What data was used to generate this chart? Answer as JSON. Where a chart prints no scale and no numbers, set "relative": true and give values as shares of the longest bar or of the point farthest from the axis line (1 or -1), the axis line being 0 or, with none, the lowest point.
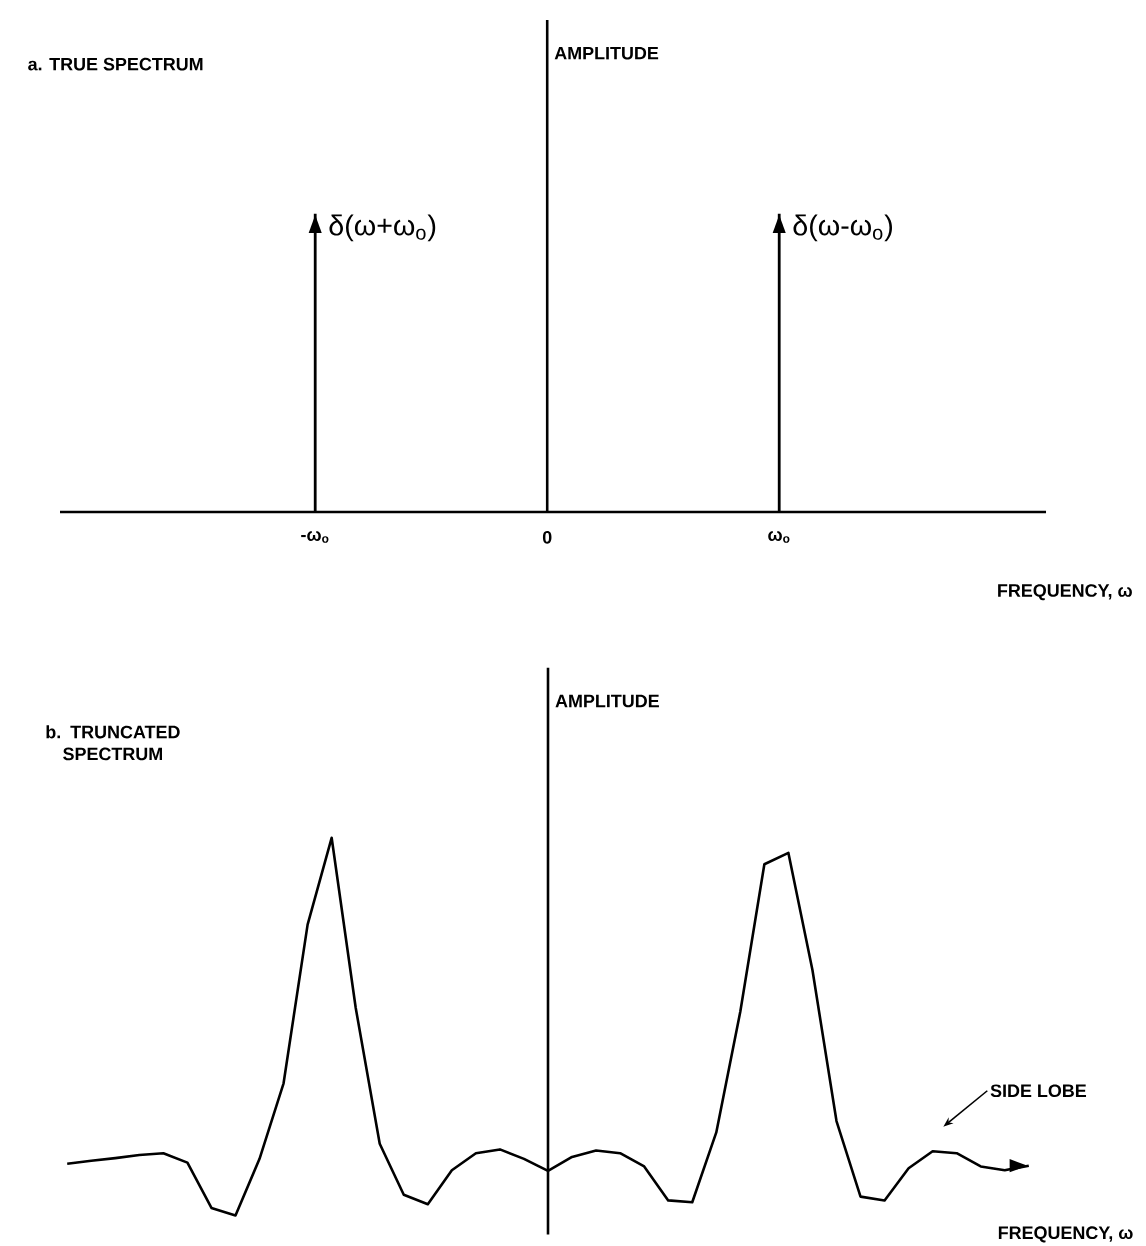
{
  "chart_data": [
    {
      "type": "bar",
      "title": "a. TRUE SPECTRUM",
      "xlabel": "FREQUENCY, ω",
      "ylabel": "AMPLITUDE",
      "relative": true,
      "categories": [
        "-ω$_{o}$",
        "0",
        "ω$_{o}$"
      ],
      "values": [
        1,
        null,
        1
      ],
      "color": "#000000",
      "annotations": [
        {
          "text": "δ(ω+ω$_{o}$)",
          "x": "-ω$_{o}$",
          "y": 1
        },
        {
          "text": "δ(ω-ω$_{o}$)",
          "x": "ω$_{o}$",
          "y": 1
        }
      ]
    },
    {
      "type": "line",
      "title": "b. TRUNCATED SPECTRUM",
      "xlabel": "FREQUENCY, ω",
      "ylabel": "AMPLITUDE",
      "relative": true,
      "color": "#000000",
      "categories": [
        null,
        null,
        null,
        null,
        null,
        null,
        null,
        null,
        null,
        null,
        null,
        null,
        null,
        null,
        null,
        null,
        null,
        null,
        null,
        null,
        null,
        null,
        null,
        null,
        null,
        null,
        null,
        null,
        null,
        null,
        null,
        null,
        null,
        null,
        null,
        null,
        null,
        null,
        null,
        null,
        null
      ],
      "values": [
        0.137,
        0.145,
        0.152,
        0.16,
        0.165,
        0.14,
        0.02,
        0,
        0.15,
        0.35,
        0.77,
        1,
        0.55,
        0.19,
        0.055,
        0.03,
        0.12,
        0.165,
        0.175,
        0.15,
        0.118,
        0.155,
        0.172,
        0.165,
        0.13,
        0.04,
        0.035,
        0.22,
        0.54,
        0.93,
        0.96,
        0.65,
        0.25,
        0.05,
        0.04,
        0.125,
        0.17,
        0.165,
        0.13,
        0.12,
        0.132
      ],
      "annotations": [
        "SIDE LOBE"
      ]
    }
  ]
}
